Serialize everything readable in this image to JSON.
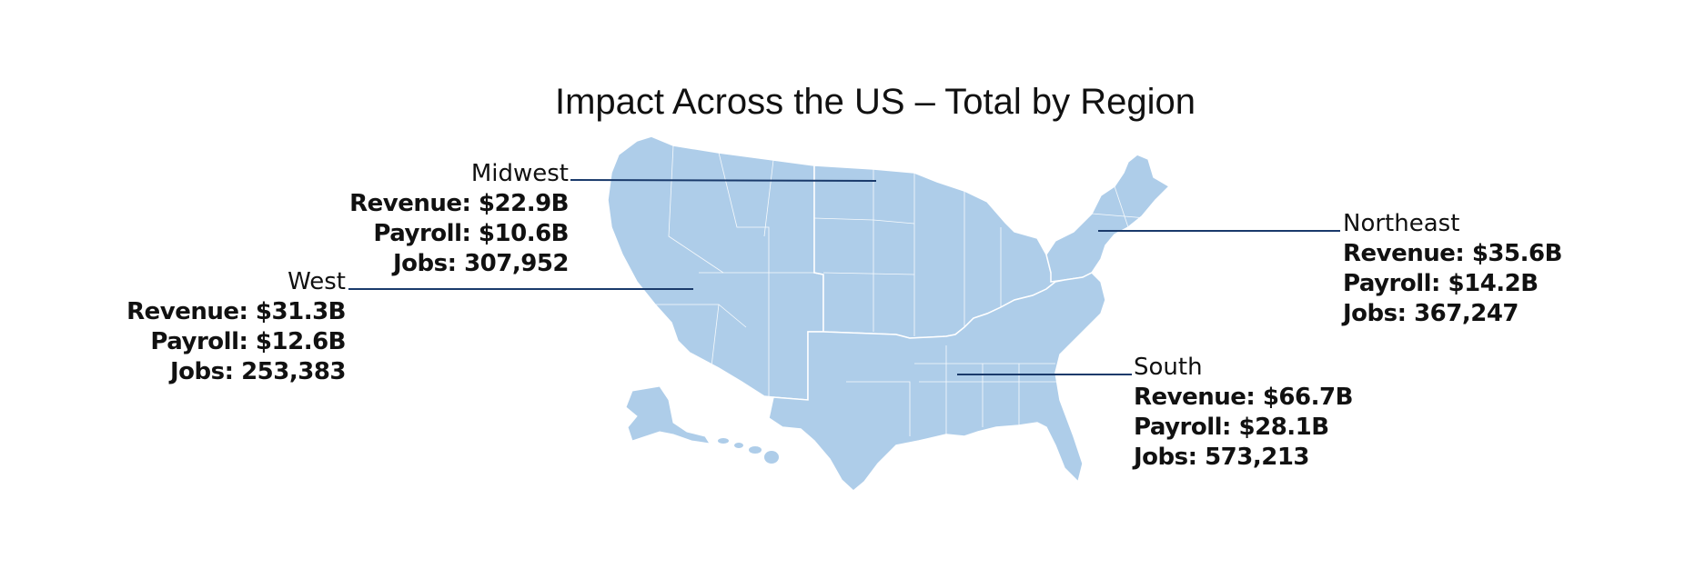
{
  "title": "Impact Across the US – Total by Region",
  "colors": {
    "land": "#aecde9",
    "region_border": "#ffffff",
    "leader_line": "#1a3a6b",
    "text": "#111111"
  },
  "regions": {
    "midwest": {
      "name": "Midwest",
      "revenue": "Revenue: $22.9B",
      "payroll": "Payroll: $10.6B",
      "jobs": "Jobs: 307,952"
    },
    "west": {
      "name": "West",
      "revenue": "Revenue: $31.3B",
      "payroll": "Payroll: $12.6B",
      "jobs": "Jobs: 253,383"
    },
    "northeast": {
      "name": "Northeast",
      "revenue": "Revenue: $35.6B",
      "payroll": "Payroll: $14.2B",
      "jobs": "Jobs: 367,247"
    },
    "south": {
      "name": "South",
      "revenue": "Revenue: $66.7B",
      "payroll": "Payroll: $28.1B",
      "jobs": "Jobs: 573,213"
    }
  }
}
